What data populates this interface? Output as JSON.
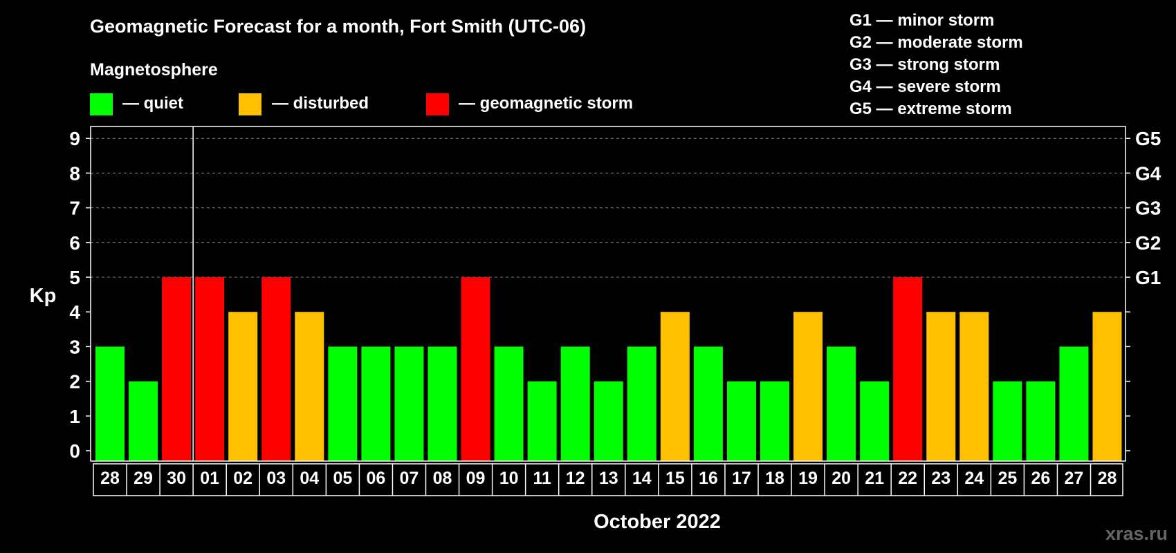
{
  "title": "Geomagnetic Forecast for a month, Fort Smith (UTC-06)",
  "magnetosphere": {
    "heading": "Magnetosphere",
    "legend": [
      {
        "label": "— quiet",
        "color": "#00ff00"
      },
      {
        "label": "— disturbed",
        "color": "#ffc000"
      },
      {
        "label": "— geomagnetic storm",
        "color": "#ff0000"
      }
    ]
  },
  "storm_scale": [
    "G1 — minor storm",
    "G2 — moderate storm",
    "G3 — strong storm",
    "G4 — severe storm",
    "G5 — extreme storm"
  ],
  "watermark": "xras.ru",
  "chart_data": {
    "type": "bar",
    "title": "Geomagnetic Forecast for a month, Fort Smith (UTC-06)",
    "xlabel": "October 2022",
    "ylabel": "Kp",
    "ylim": [
      0,
      9
    ],
    "yticks": [
      "0",
      "1",
      "2",
      "3",
      "4",
      "5",
      "6",
      "7",
      "8",
      "9"
    ],
    "right_ticks": [
      {
        "kp": 5,
        "label": "G1"
      },
      {
        "kp": 6,
        "label": "G2"
      },
      {
        "kp": 7,
        "label": "G3"
      },
      {
        "kp": 8,
        "label": "G4"
      },
      {
        "kp": 9,
        "label": "G5"
      }
    ],
    "month_boundary_index": 3,
    "categories": [
      "28",
      "29",
      "30",
      "01",
      "02",
      "03",
      "04",
      "05",
      "06",
      "07",
      "08",
      "09",
      "10",
      "11",
      "12",
      "13",
      "14",
      "15",
      "16",
      "17",
      "18",
      "19",
      "20",
      "21",
      "22",
      "23",
      "24",
      "25",
      "26",
      "27",
      "28"
    ],
    "values": [
      3,
      2,
      5,
      5,
      4,
      5,
      4,
      3,
      3,
      3,
      3,
      5,
      3,
      2,
      3,
      2,
      3,
      4,
      3,
      2,
      2,
      4,
      3,
      2,
      5,
      4,
      4,
      2,
      2,
      3,
      4
    ],
    "level_colors": {
      "quiet": "#00ff00",
      "disturbed": "#ffc000",
      "storm": "#ff0000"
    }
  }
}
